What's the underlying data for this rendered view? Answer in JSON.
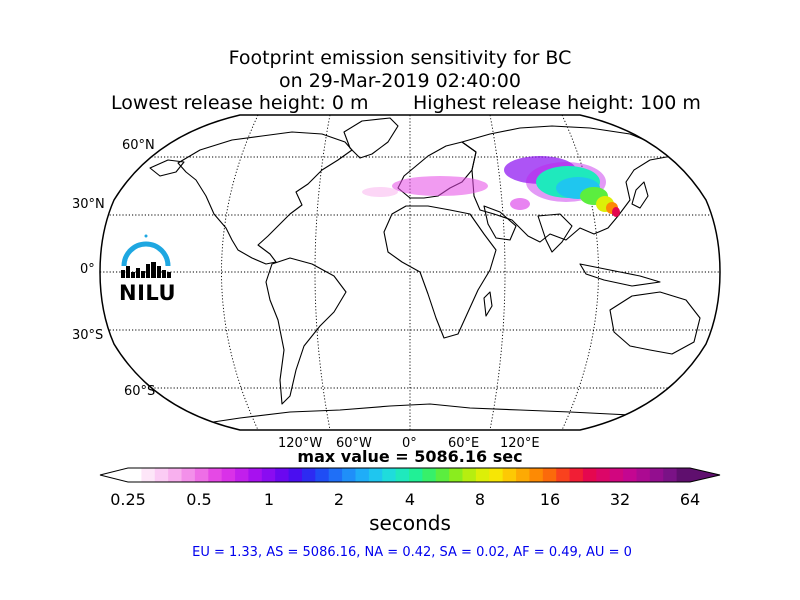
{
  "title": {
    "line1": "Footprint emission sensitivity for BC",
    "line2": "on 29-Mar-2019 02:40:00",
    "lowest": "Lowest release height: 0 m",
    "highest": "Highest release height: 100 m"
  },
  "map": {
    "projection": "robinson",
    "lat_labels": [
      "60°N",
      "30°N",
      "0°",
      "30°S",
      "60°S"
    ],
    "lon_labels": [
      "120°W",
      "60°W",
      "0°",
      "60°E",
      "120°E"
    ]
  },
  "logo": {
    "text": "NILU",
    "color": "#1ea7e1"
  },
  "max_value_text": "max value = 5086.16 sec",
  "colorbar": {
    "ticks": [
      "0.25",
      "0.5",
      "1",
      "2",
      "4",
      "8",
      "16",
      "32",
      "64"
    ],
    "label": "seconds",
    "colors": [
      "#ffffff",
      "#fde6f8",
      "#fbccf4",
      "#f8b0ee",
      "#f390ea",
      "#ee6ee6",
      "#e549e5",
      "#d931e8",
      "#c21fec",
      "#a711ef",
      "#8a0cf1",
      "#6b08f0",
      "#4a0ef0",
      "#2d2bf2",
      "#1f4df5",
      "#1f6ff7",
      "#1f8ff9",
      "#1fadf8",
      "#1fc6ef",
      "#1fdcdc",
      "#1fe9bd",
      "#21f096",
      "#37f06a",
      "#5bee3f",
      "#8aed1e",
      "#b6ee10",
      "#dcef08",
      "#f7e605",
      "#fdc904",
      "#fdaa04",
      "#fd8a04",
      "#fb6a0b",
      "#f9421e",
      "#f11e35",
      "#e5074f",
      "#dc0668",
      "#d1067f",
      "#c40691",
      "#ac0a92",
      "#930e8f",
      "#7a1286",
      "#5f0f6e"
    ]
  },
  "stats_text": "EU = 1.33,  AS = 5086.16,  NA = 0.42,  SA = 0.02,  AF = 0.49,  AU = 0"
}
